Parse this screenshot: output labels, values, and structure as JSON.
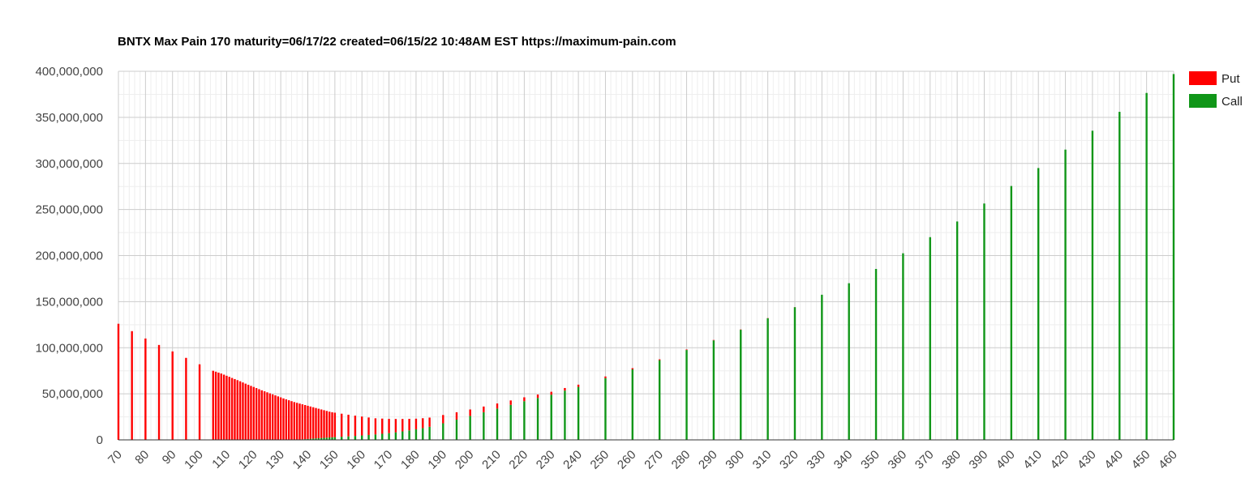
{
  "chart_data": {
    "type": "bar",
    "stacked": true,
    "title": "BNTX Max Pain 170 maturity=06/17/22 created=06/15/22 10:48AM EST https://maximum-pain.com",
    "xlabel": "",
    "ylabel": "",
    "ylim": [
      0,
      400000000
    ],
    "y_ticks": [
      0,
      50000000,
      100000000,
      150000000,
      200000000,
      250000000,
      300000000,
      350000000,
      400000000
    ],
    "y_tick_labels": [
      "0",
      "50,000,000",
      "100,000,000",
      "150,000,000",
      "200,000,000",
      "250,000,000",
      "300,000,000",
      "350,000,000",
      "400,000,000"
    ],
    "x_ticks": [
      70,
      80,
      90,
      100,
      110,
      120,
      130,
      140,
      150,
      160,
      170,
      180,
      190,
      200,
      210,
      220,
      230,
      240,
      250,
      260,
      270,
      280,
      290,
      300,
      310,
      320,
      330,
      340,
      350,
      360,
      370,
      380,
      390,
      400,
      410,
      420,
      430,
      440,
      450,
      460
    ],
    "xlim": [
      70,
      460
    ],
    "grid": true,
    "legend_position": "right",
    "legend": [
      {
        "name": "Put",
        "color": "#ff0000"
      },
      {
        "name": "Call",
        "color": "#109618"
      }
    ],
    "series": [
      {
        "name": "Put",
        "color": "#ff0000"
      },
      {
        "name": "Call",
        "color": "#109618"
      }
    ],
    "points": [
      {
        "x": 70,
        "put": 126000000,
        "call": 0
      },
      {
        "x": 75,
        "put": 118000000,
        "call": 0
      },
      {
        "x": 80,
        "put": 110000000,
        "call": 0
      },
      {
        "x": 85,
        "put": 103000000,
        "call": 0
      },
      {
        "x": 90,
        "put": 96000000,
        "call": 0
      },
      {
        "x": 95,
        "put": 89000000,
        "call": 0
      },
      {
        "x": 100,
        "put": 82000000,
        "call": 0
      },
      {
        "x": 105,
        "put": 75000000,
        "call": 0
      },
      {
        "x": 106,
        "put": 74000000,
        "call": 0
      },
      {
        "x": 107,
        "put": 73000000,
        "call": 0
      },
      {
        "x": 108,
        "put": 72000000,
        "call": 0
      },
      {
        "x": 109,
        "put": 70800000,
        "call": 0
      },
      {
        "x": 110,
        "put": 69600000,
        "call": 0
      },
      {
        "x": 111,
        "put": 68400000,
        "call": 0
      },
      {
        "x": 112,
        "put": 67200000,
        "call": 0
      },
      {
        "x": 113,
        "put": 66000000,
        "call": 0
      },
      {
        "x": 114,
        "put": 64800000,
        "call": 0
      },
      {
        "x": 115,
        "put": 63600000,
        "call": 0
      },
      {
        "x": 116,
        "put": 62300000,
        "call": 0
      },
      {
        "x": 117,
        "put": 61000000,
        "call": 0
      },
      {
        "x": 118,
        "put": 59800000,
        "call": 0
      },
      {
        "x": 119,
        "put": 58600000,
        "call": 0
      },
      {
        "x": 120,
        "put": 57400000,
        "call": 0
      },
      {
        "x": 121,
        "put": 56200000,
        "call": 0
      },
      {
        "x": 122,
        "put": 55000000,
        "call": 0
      },
      {
        "x": 123,
        "put": 53800000,
        "call": 0
      },
      {
        "x": 124,
        "put": 52700000,
        "call": 0
      },
      {
        "x": 125,
        "put": 51600000,
        "call": 0
      },
      {
        "x": 126,
        "put": 50500000,
        "call": 0
      },
      {
        "x": 127,
        "put": 49400000,
        "call": 0
      },
      {
        "x": 128,
        "put": 48300000,
        "call": 0
      },
      {
        "x": 129,
        "put": 47200000,
        "call": 0
      },
      {
        "x": 130,
        "put": 46100000,
        "call": 0
      },
      {
        "x": 131,
        "put": 45000000,
        "call": 0
      },
      {
        "x": 132,
        "put": 44000000,
        "call": 0
      },
      {
        "x": 133,
        "put": 43000000,
        "call": 0
      },
      {
        "x": 134,
        "put": 42000000,
        "call": 0
      },
      {
        "x": 135,
        "put": 41000000,
        "call": 0
      },
      {
        "x": 136,
        "put": 40000000,
        "call": 200000
      },
      {
        "x": 137,
        "put": 39000000,
        "call": 400000
      },
      {
        "x": 138,
        "put": 38000000,
        "call": 600000
      },
      {
        "x": 139,
        "put": 37000000,
        "call": 800000
      },
      {
        "x": 140,
        "put": 36000000,
        "call": 1000000
      },
      {
        "x": 141,
        "put": 35000000,
        "call": 1200000
      },
      {
        "x": 142,
        "put": 34000000,
        "call": 1400000
      },
      {
        "x": 143,
        "put": 33000000,
        "call": 1600000
      },
      {
        "x": 144,
        "put": 32000000,
        "call": 1800000
      },
      {
        "x": 145,
        "put": 31000000,
        "call": 2000000
      },
      {
        "x": 146,
        "put": 30000000,
        "call": 2200000
      },
      {
        "x": 147,
        "put": 29000000,
        "call": 2400000
      },
      {
        "x": 148,
        "put": 28000000,
        "call": 2600000
      },
      {
        "x": 149,
        "put": 27200000,
        "call": 2800000
      },
      {
        "x": 150,
        "put": 26500000,
        "call": 3000000
      },
      {
        "x": 152.5,
        "put": 25000000,
        "call": 3400000
      },
      {
        "x": 155,
        "put": 23500000,
        "call": 3800000
      },
      {
        "x": 157.5,
        "put": 22000000,
        "call": 4300000
      },
      {
        "x": 160,
        "put": 20500000,
        "call": 4800000
      },
      {
        "x": 162.5,
        "put": 19000000,
        "call": 5300000
      },
      {
        "x": 165,
        "put": 17500000,
        "call": 5900000
      },
      {
        "x": 167.5,
        "put": 16500000,
        "call": 6600000
      },
      {
        "x": 170,
        "put": 15500000,
        "call": 7300000
      },
      {
        "x": 172.5,
        "put": 14500000,
        "call": 8200000
      },
      {
        "x": 175,
        "put": 13500000,
        "call": 9200000
      },
      {
        "x": 177.5,
        "put": 12500000,
        "call": 10300000
      },
      {
        "x": 180,
        "put": 11500000,
        "call": 11500000
      },
      {
        "x": 182.5,
        "put": 10700000,
        "call": 12800000
      },
      {
        "x": 185,
        "put": 10000000,
        "call": 14200000
      },
      {
        "x": 190,
        "put": 9000000,
        "call": 18000000
      },
      {
        "x": 195,
        "put": 8000000,
        "call": 22000000
      },
      {
        "x": 200,
        "put": 7000000,
        "call": 26000000
      },
      {
        "x": 205,
        "put": 6200000,
        "call": 30000000
      },
      {
        "x": 210,
        "put": 5500000,
        "call": 34000000
      },
      {
        "x": 215,
        "put": 4800000,
        "call": 38000000
      },
      {
        "x": 220,
        "put": 4200000,
        "call": 42000000
      },
      {
        "x": 225,
        "put": 3700000,
        "call": 45500000
      },
      {
        "x": 230,
        "put": 3200000,
        "call": 49000000
      },
      {
        "x": 235,
        "put": 2800000,
        "call": 53500000
      },
      {
        "x": 240,
        "put": 2400000,
        "call": 57500000
      },
      {
        "x": 250,
        "put": 1800000,
        "call": 67000000
      },
      {
        "x": 260,
        "put": 1300000,
        "call": 76500000
      },
      {
        "x": 270,
        "put": 900000,
        "call": 86500000
      },
      {
        "x": 280,
        "put": 600000,
        "call": 97500000
      },
      {
        "x": 290,
        "put": 400000,
        "call": 108000000
      },
      {
        "x": 300,
        "put": 300000,
        "call": 119500000
      },
      {
        "x": 310,
        "put": 200000,
        "call": 132000000
      },
      {
        "x": 320,
        "put": 100000,
        "call": 144000000
      },
      {
        "x": 330,
        "put": 0,
        "call": 157500000
      },
      {
        "x": 340,
        "put": 0,
        "call": 170000000
      },
      {
        "x": 350,
        "put": 0,
        "call": 185500000
      },
      {
        "x": 360,
        "put": 0,
        "call": 202500000
      },
      {
        "x": 370,
        "put": 0,
        "call": 220000000
      },
      {
        "x": 380,
        "put": 0,
        "call": 237000000
      },
      {
        "x": 390,
        "put": 0,
        "call": 256500000
      },
      {
        "x": 400,
        "put": 0,
        "call": 275500000
      },
      {
        "x": 410,
        "put": 0,
        "call": 295000000
      },
      {
        "x": 420,
        "put": 0,
        "call": 315000000
      },
      {
        "x": 430,
        "put": 0,
        "call": 335500000
      },
      {
        "x": 440,
        "put": 0,
        "call": 356000000
      },
      {
        "x": 450,
        "put": 0,
        "call": 376500000
      },
      {
        "x": 460,
        "put": 0,
        "call": 397000000
      }
    ]
  }
}
